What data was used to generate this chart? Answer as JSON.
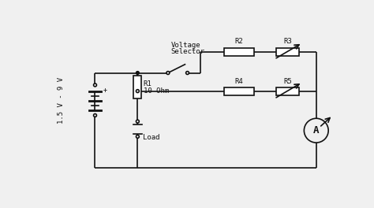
{
  "bg_color": "#f0f0f0",
  "line_color": "#111111",
  "battery_label": "1.5 V - 9 V",
  "r1_label1": "R1",
  "r1_label2": "10 Ohm",
  "r2_label": "R2",
  "r3_label": "R3",
  "r4_label": "R4",
  "r5_label": "R5",
  "load_label": "Load",
  "voltage_selector_label1": "Voltage",
  "voltage_selector_label2": "Selector",
  "ammeter_label": "A",
  "lw": 1.2
}
